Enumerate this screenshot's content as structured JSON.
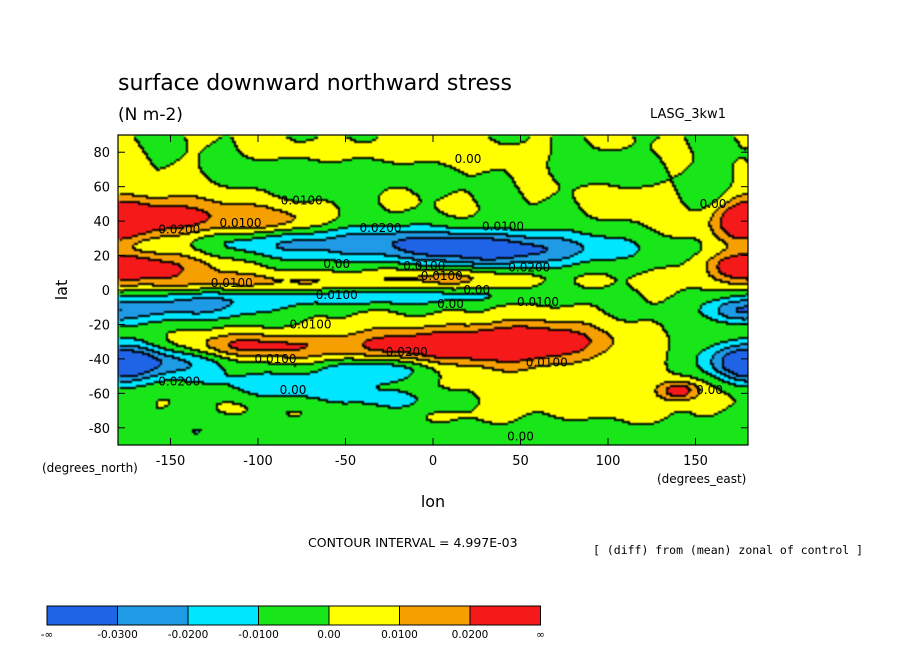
{
  "chart_data": {
    "type": "heatmap",
    "title": "surface downward northward stress",
    "units": "(N m-2)",
    "model_tag": "LASG_3kw1",
    "xlabel": "lon",
    "ylabel": "lat",
    "x_unit_label": "(degrees_east)",
    "y_unit_label": "(degrees_north)",
    "xlim": [
      -180,
      180
    ],
    "ylim": [
      -90,
      90
    ],
    "x_ticks": [
      -150,
      -100,
      -50,
      0,
      50,
      100,
      150
    ],
    "x_tick_labels": [
      "-150",
      "-100",
      "-50",
      "0",
      "50",
      "100",
      "150"
    ],
    "y_ticks": [
      80,
      60,
      40,
      20,
      0,
      -20,
      -40,
      -60,
      -80
    ],
    "y_tick_labels": [
      "80",
      "60",
      "40",
      "20",
      "0",
      "-20",
      "-40",
      "-60",
      "-80"
    ],
    "contour_interval_text": "CONTOUR INTERVAL = 4.997E-03",
    "footnote": "[ (diff) from (mean) zonal of control ]",
    "colorbar": {
      "colors": [
        "#1f63e6",
        "#1f9be6",
        "#00e6ff",
        "#19e619",
        "#ffff00",
        "#f5a000",
        "#f51919"
      ],
      "labels": [
        "-∞",
        "-0.0300",
        "-0.0200",
        "-0.0100",
        "0.00",
        "0.0100",
        "0.0200",
        "∞"
      ]
    },
    "field_levels": [
      -0.03,
      -0.02,
      -0.01,
      0.0,
      0.01,
      0.02
    ],
    "field_model": [
      {
        "lon": -155,
        "lat": 42,
        "slon": 30,
        "slat": 9,
        "amp": 0.028
      },
      {
        "lon": -95,
        "lat": 40,
        "slon": 22,
        "slat": 6,
        "amp": 0.016
      },
      {
        "lon": -160,
        "lat": 14,
        "slon": 28,
        "slat": 7,
        "amp": 0.022
      },
      {
        "lon": -100,
        "lat": 5,
        "slon": 55,
        "slat": 4,
        "amp": 0.011
      },
      {
        "lon": -45,
        "lat": 28,
        "slon": 75,
        "slat": 7,
        "amp": -0.024
      },
      {
        "lon": 40,
        "lat": 23,
        "slon": 45,
        "slat": 7,
        "amp": -0.028
      },
      {
        "lon": 10,
        "lat": 8,
        "slon": 35,
        "slat": 4,
        "amp": 0.012
      },
      {
        "lon": -150,
        "lat": -10,
        "slon": 35,
        "slat": 6,
        "amp": -0.024
      },
      {
        "lon": -70,
        "lat": -4,
        "slon": 50,
        "slat": 4,
        "amp": -0.013
      },
      {
        "lon": 5,
        "lat": -3,
        "slon": 45,
        "slat": 3,
        "amp": -0.011
      },
      {
        "lon": -10,
        "lat": -32,
        "slon": 38,
        "slat": 7,
        "amp": 0.026
      },
      {
        "lon": 55,
        "lat": -30,
        "slon": 30,
        "slat": 8,
        "amp": 0.034
      },
      {
        "lon": -105,
        "lat": -32,
        "slon": 30,
        "slat": 5,
        "amp": 0.022
      },
      {
        "lon": -165,
        "lat": -42,
        "slon": 28,
        "slat": 7,
        "amp": -0.03
      },
      {
        "lon": -75,
        "lat": -55,
        "slon": 40,
        "slat": 6,
        "amp": -0.018
      },
      {
        "lon": -35,
        "lat": -45,
        "slon": 22,
        "slat": 5,
        "amp": -0.02
      },
      {
        "lon": -20,
        "lat": -64,
        "slon": 25,
        "slat": 5,
        "amp": -0.014
      },
      {
        "lon": 60,
        "lat": -58,
        "slon": 80,
        "slat": 10,
        "amp": 0.006
      },
      {
        "lon": 140,
        "lat": -58,
        "slon": 8,
        "slat": 4,
        "amp": 0.026
      },
      {
        "lon": 178,
        "lat": -42,
        "slon": 14,
        "slat": 9,
        "amp": -0.024
      },
      {
        "lon": 178,
        "lat": 40,
        "slon": 12,
        "slat": 9,
        "amp": 0.026
      },
      {
        "lon": 178,
        "lat": 14,
        "slon": 14,
        "slat": 5,
        "amp": 0.022
      },
      {
        "lon": 172,
        "lat": -12,
        "slon": 12,
        "slat": 5,
        "amp": -0.018
      },
      {
        "lon": -60,
        "lat": 68,
        "slon": 35,
        "slat": 7,
        "amp": -0.008
      },
      {
        "lon": 120,
        "lat": 52,
        "slon": 12,
        "slat": 6,
        "amp": 0.007
      },
      {
        "lon": 160,
        "lat": 55,
        "slon": 12,
        "slat": 10,
        "amp": -0.008
      },
      {
        "lon": 100,
        "lat": 72,
        "slon": 20,
        "slat": 6,
        "amp": -0.006
      },
      {
        "lon": -120,
        "lat": -82,
        "slon": 60,
        "slat": 6,
        "amp": -0.008
      },
      {
        "lon": 60,
        "lat": -84,
        "slon": 70,
        "slat": 5,
        "amp": -0.007
      },
      {
        "lon": -20,
        "lat": 80,
        "slon": 50,
        "slat": 5,
        "amp": 0.006
      }
    ],
    "contour_labels": [
      {
        "lon": 20,
        "lat": 76,
        "text": "0.00"
      },
      {
        "lon": -75,
        "lat": 52,
        "text": "0.0100"
      },
      {
        "lon": -145,
        "lat": 35,
        "text": "0.0200"
      },
      {
        "lon": -110,
        "lat": 39,
        "text": "0.0100"
      },
      {
        "lon": -30,
        "lat": 36,
        "text": "0.0200"
      },
      {
        "lon": 40,
        "lat": 37,
        "text": "0.0100"
      },
      {
        "lon": 160,
        "lat": 50,
        "text": "0.00"
      },
      {
        "lon": -55,
        "lat": 15,
        "text": "0.00"
      },
      {
        "lon": -5,
        "lat": 14,
        "text": "0.0100"
      },
      {
        "lon": 5,
        "lat": 8,
        "text": "0.0100"
      },
      {
        "lon": 55,
        "lat": 13,
        "text": "0.0200"
      },
      {
        "lon": -115,
        "lat": 4,
        "text": "0.0100"
      },
      {
        "lon": 25,
        "lat": 0,
        "text": "0.00"
      },
      {
        "lon": -55,
        "lat": -3,
        "text": "0.0100"
      },
      {
        "lon": 10,
        "lat": -8,
        "text": "0.00"
      },
      {
        "lon": 60,
        "lat": -7,
        "text": "0.0100"
      },
      {
        "lon": -70,
        "lat": -20,
        "text": "0.0100"
      },
      {
        "lon": -90,
        "lat": -40,
        "text": "0.0100"
      },
      {
        "lon": -15,
        "lat": -36,
        "text": "0.0200"
      },
      {
        "lon": 65,
        "lat": -42,
        "text": "0.0100"
      },
      {
        "lon": -145,
        "lat": -53,
        "text": "0.0200"
      },
      {
        "lon": -80,
        "lat": -58,
        "text": "0.00"
      },
      {
        "lon": 50,
        "lat": -85,
        "text": "0.00"
      },
      {
        "lon": 158,
        "lat": -58,
        "text": "0.00"
      }
    ]
  }
}
